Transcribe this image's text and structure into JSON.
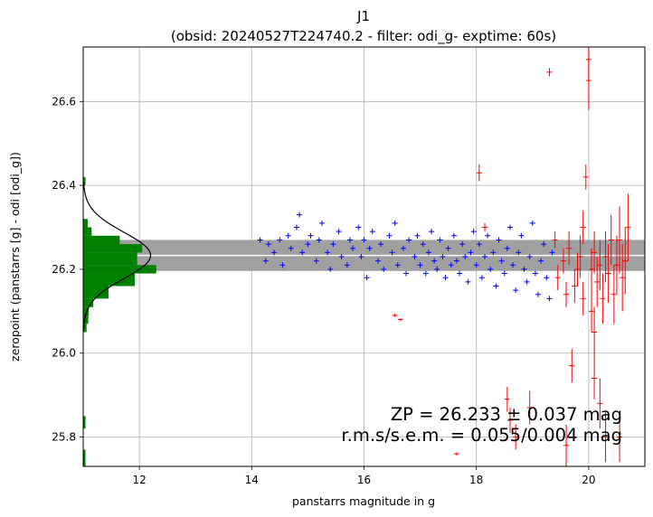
{
  "chart_data": {
    "type": "scatter",
    "title": "J1",
    "subtitle": "(obsid: 20240527T224740.2 - filter: odi_g- exptime: 60s)",
    "xlabel": "panstarrs magnitude in g",
    "ylabel": "zeropoint (panstarrs [g] - odi [odi_g])",
    "xlim": [
      11.0,
      21.0
    ],
    "ylim": [
      25.73,
      26.73
    ],
    "xticks": [
      "12",
      "14",
      "16",
      "18",
      "20"
    ],
    "yticks": [
      "25.8",
      "26.0",
      "26.2",
      "26.4",
      "26.6"
    ],
    "grid": true,
    "zeropoint": 26.233,
    "zeropoint_err": 0.037,
    "annotation": {
      "line1": "ZP = 26.233 ± 0.037 mag",
      "line2": "r.m.s/s.e.m. = 0.055/0.004 mag"
    },
    "colors": {
      "used_stars": "#0000ff",
      "rejected_stars": "#ff0000",
      "histogram": "#008000",
      "band": "#a0a0a0",
      "zp_line": "#ffffff",
      "gaussian": "#000000",
      "grid": "#b0b0b0"
    },
    "histogram": {
      "orientation": "horizontal",
      "bins": [
        {
          "y0": 25.73,
          "y1": 25.77,
          "count": 0.04
        },
        {
          "y0": 25.82,
          "y1": 25.85,
          "count": 0.04
        },
        {
          "y0": 26.05,
          "y1": 26.07,
          "count": 0.06
        },
        {
          "y0": 26.07,
          "y1": 26.09,
          "count": 0.09
        },
        {
          "y0": 26.09,
          "y1": 26.11,
          "count": 0.1
        },
        {
          "y0": 26.11,
          "y1": 26.13,
          "count": 0.18
        },
        {
          "y0": 26.13,
          "y1": 26.16,
          "count": 0.45
        },
        {
          "y0": 26.16,
          "y1": 26.19,
          "count": 0.92
        },
        {
          "y0": 26.19,
          "y1": 26.21,
          "count": 1.3
        },
        {
          "y0": 26.21,
          "y1": 26.24,
          "count": 0.96
        },
        {
          "y0": 26.24,
          "y1": 26.26,
          "count": 1.05
        },
        {
          "y0": 26.26,
          "y1": 26.28,
          "count": 0.65
        },
        {
          "y0": 26.28,
          "y1": 26.3,
          "count": 0.15
        },
        {
          "y0": 26.3,
          "y1": 26.32,
          "count": 0.08
        },
        {
          "y0": 26.4,
          "y1": 26.42,
          "count": 0.04
        }
      ],
      "gaussian_amplitude": 1.2,
      "gaussian_sigma": 0.055
    },
    "series": [
      {
        "name": "used",
        "marker": "+",
        "points": [
          [
            14.15,
            26.27
          ],
          [
            14.25,
            26.22
          ],
          [
            14.3,
            26.26
          ],
          [
            14.4,
            26.24
          ],
          [
            14.5,
            26.27
          ],
          [
            14.55,
            26.21
          ],
          [
            14.65,
            26.28
          ],
          [
            14.7,
            26.25
          ],
          [
            14.8,
            26.3
          ],
          [
            14.85,
            26.33
          ],
          [
            14.9,
            26.24
          ],
          [
            15.0,
            26.26
          ],
          [
            15.05,
            26.28
          ],
          [
            15.15,
            26.22
          ],
          [
            15.2,
            26.27
          ],
          [
            15.25,
            26.31
          ],
          [
            15.35,
            26.24
          ],
          [
            15.4,
            26.2
          ],
          [
            15.45,
            26.26
          ],
          [
            15.55,
            26.29
          ],
          [
            15.6,
            26.23
          ],
          [
            15.7,
            26.21
          ],
          [
            15.75,
            26.27
          ],
          [
            15.8,
            26.25
          ],
          [
            15.9,
            26.3
          ],
          [
            15.95,
            26.23
          ],
          [
            16.0,
            26.27
          ],
          [
            16.05,
            26.18
          ],
          [
            16.1,
            26.25
          ],
          [
            16.15,
            26.29
          ],
          [
            16.25,
            26.22
          ],
          [
            16.3,
            26.26
          ],
          [
            16.35,
            26.2
          ],
          [
            16.45,
            26.28
          ],
          [
            16.5,
            26.24
          ],
          [
            16.55,
            26.31
          ],
          [
            16.6,
            26.21
          ],
          [
            16.7,
            26.25
          ],
          [
            16.75,
            26.19
          ],
          [
            16.8,
            26.27
          ],
          [
            16.9,
            26.23
          ],
          [
            16.95,
            26.28
          ],
          [
            17.0,
            26.21
          ],
          [
            17.05,
            26.26
          ],
          [
            17.1,
            26.19
          ],
          [
            17.15,
            26.24
          ],
          [
            17.2,
            26.29
          ],
          [
            17.25,
            26.22
          ],
          [
            17.3,
            26.2
          ],
          [
            17.35,
            26.27
          ],
          [
            17.4,
            26.23
          ],
          [
            17.45,
            26.18
          ],
          [
            17.5,
            26.25
          ],
          [
            17.55,
            26.21
          ],
          [
            17.6,
            26.28
          ],
          [
            17.65,
            26.22
          ],
          [
            17.7,
            26.19
          ],
          [
            17.75,
            26.26
          ],
          [
            17.8,
            26.23
          ],
          [
            17.85,
            26.17
          ],
          [
            17.9,
            26.24
          ],
          [
            17.95,
            26.29
          ],
          [
            18.0,
            26.21
          ],
          [
            18.05,
            26.26
          ],
          [
            18.1,
            26.18
          ],
          [
            18.15,
            26.23
          ],
          [
            18.2,
            26.28
          ],
          [
            18.25,
            26.2
          ],
          [
            18.3,
            26.24
          ],
          [
            18.35,
            26.16
          ],
          [
            18.4,
            26.27
          ],
          [
            18.45,
            26.22
          ],
          [
            18.5,
            26.19
          ],
          [
            18.55,
            26.25
          ],
          [
            18.6,
            26.3
          ],
          [
            18.65,
            26.21
          ],
          [
            18.7,
            26.15
          ],
          [
            18.75,
            26.24
          ],
          [
            18.8,
            26.28
          ],
          [
            18.85,
            26.2
          ],
          [
            18.9,
            26.17
          ],
          [
            18.95,
            26.23
          ],
          [
            19.0,
            26.31
          ],
          [
            19.05,
            26.19
          ],
          [
            19.1,
            26.14
          ],
          [
            19.15,
            26.22
          ],
          [
            19.2,
            26.26
          ],
          [
            19.25,
            26.18
          ],
          [
            19.3,
            26.13
          ],
          [
            19.35,
            26.24
          ]
        ]
      },
      {
        "name": "rejected",
        "marker": "errorbar",
        "points": [
          [
            16.55,
            26.09,
            0.004
          ],
          [
            16.65,
            26.08,
            0.004
          ],
          [
            17.65,
            25.76,
            0.004
          ],
          [
            18.05,
            26.43,
            0.02
          ],
          [
            18.15,
            26.3,
            0.01
          ],
          [
            18.55,
            25.89,
            0.03
          ],
          [
            18.6,
            25.84,
            0.03
          ],
          [
            18.7,
            25.8,
            0.03
          ],
          [
            18.95,
            25.87,
            0.04
          ],
          [
            19.3,
            26.67,
            0.01
          ],
          [
            19.4,
            26.27,
            0.02
          ],
          [
            19.45,
            26.18,
            0.03
          ],
          [
            19.55,
            26.22,
            0.03
          ],
          [
            19.6,
            26.14,
            0.03
          ],
          [
            19.65,
            26.25,
            0.04
          ],
          [
            19.7,
            25.97,
            0.04
          ],
          [
            19.75,
            26.16,
            0.04
          ],
          [
            19.8,
            26.2,
            0.04
          ],
          [
            19.85,
            26.23,
            0.05
          ],
          [
            19.9,
            26.13,
            0.04
          ],
          [
            19.95,
            26.42,
            0.03
          ],
          [
            20.0,
            26.65,
            0.07
          ],
          [
            20.0,
            26.7,
            0.05
          ],
          [
            20.05,
            26.2,
            0.05
          ],
          [
            20.05,
            26.1,
            0.05
          ],
          [
            20.1,
            25.94,
            0.05
          ],
          [
            20.1,
            26.24,
            0.05
          ],
          [
            20.15,
            26.17,
            0.06
          ],
          [
            20.2,
            26.21,
            0.06
          ],
          [
            20.2,
            25.88,
            0.06
          ],
          [
            20.25,
            26.13,
            0.06
          ],
          [
            20.3,
            26.23,
            0.06
          ],
          [
            20.35,
            26.19,
            0.07
          ],
          [
            20.4,
            26.27,
            0.06
          ],
          [
            20.45,
            26.14,
            0.07
          ],
          [
            20.5,
            26.21,
            0.07
          ],
          [
            20.55,
            26.27,
            0.08
          ],
          [
            20.6,
            26.18,
            0.08
          ],
          [
            20.65,
            26.22,
            0.08
          ],
          [
            20.7,
            26.3,
            0.08
          ],
          [
            20.3,
            25.8,
            0.06
          ],
          [
            20.55,
            25.8,
            0.06
          ],
          [
            19.6,
            25.78,
            0.05
          ],
          [
            20.1,
            26.05,
            0.06
          ],
          [
            19.9,
            26.3,
            0.04
          ]
        ]
      }
    ]
  }
}
